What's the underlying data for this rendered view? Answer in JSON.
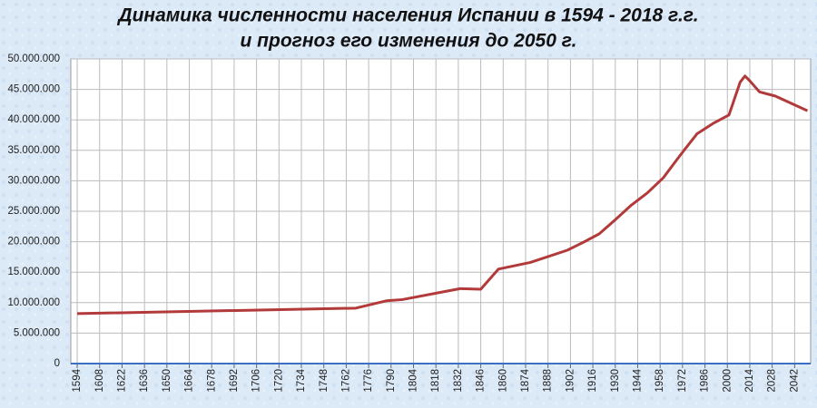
{
  "chart_data": {
    "type": "line",
    "title": [
      "Динамика численности населения Испании в 1594 - 2018 г.г.",
      "и прогноз его изменения до 2050 г."
    ],
    "xlim": [
      1590,
      2052
    ],
    "xticks": [
      1594,
      1608,
      1622,
      1636,
      1650,
      1664,
      1678,
      1692,
      1706,
      1720,
      1734,
      1748,
      1762,
      1776,
      1790,
      1804,
      1818,
      1832,
      1846,
      1860,
      1874,
      1888,
      1902,
      1916,
      1930,
      1944,
      1958,
      1972,
      1986,
      2000,
      2014,
      2028,
      2042
    ],
    "ylim": [
      0,
      50000000
    ],
    "yticks": [
      0,
      {
        "value": 5000000,
        "label": "5.000.000"
      },
      {
        "value": 10000000,
        "label": "10.000.000"
      },
      {
        "value": 15000000,
        "label": "15.000.000"
      },
      {
        "value": 20000000,
        "label": "20.000.000"
      },
      {
        "value": 25000000,
        "label": "25.000.000"
      },
      {
        "value": 30000000,
        "label": "30.000.000"
      },
      {
        "value": 35000000,
        "label": "35.000.000"
      },
      {
        "value": 40000000,
        "label": "40.000.000"
      },
      {
        "value": 45000000,
        "label": "45.000.000"
      },
      {
        "value": 50000000,
        "label": "50.000.000"
      }
    ],
    "grid": true,
    "series": [
      {
        "color": "#b23a3a",
        "x": [
          1594,
          1768,
          1787,
          1797,
          1833,
          1846,
          1857,
          1877,
          1900,
          1910,
          1920,
          1930,
          1940,
          1950,
          1960,
          1970,
          1981,
          1991,
          2001,
          2008,
          2011,
          2014,
          2020,
          2030,
          2050
        ],
        "values": [
          8200000,
          9100000,
          10300000,
          10500000,
          12300000,
          12200000,
          15500000,
          16600000,
          18600000,
          19900000,
          21300000,
          23600000,
          26000000,
          28000000,
          30500000,
          34000000,
          37700000,
          39400000,
          40800000,
          46200000,
          47200000,
          46400000,
          44600000,
          43900000,
          41500000
        ]
      }
    ]
  }
}
